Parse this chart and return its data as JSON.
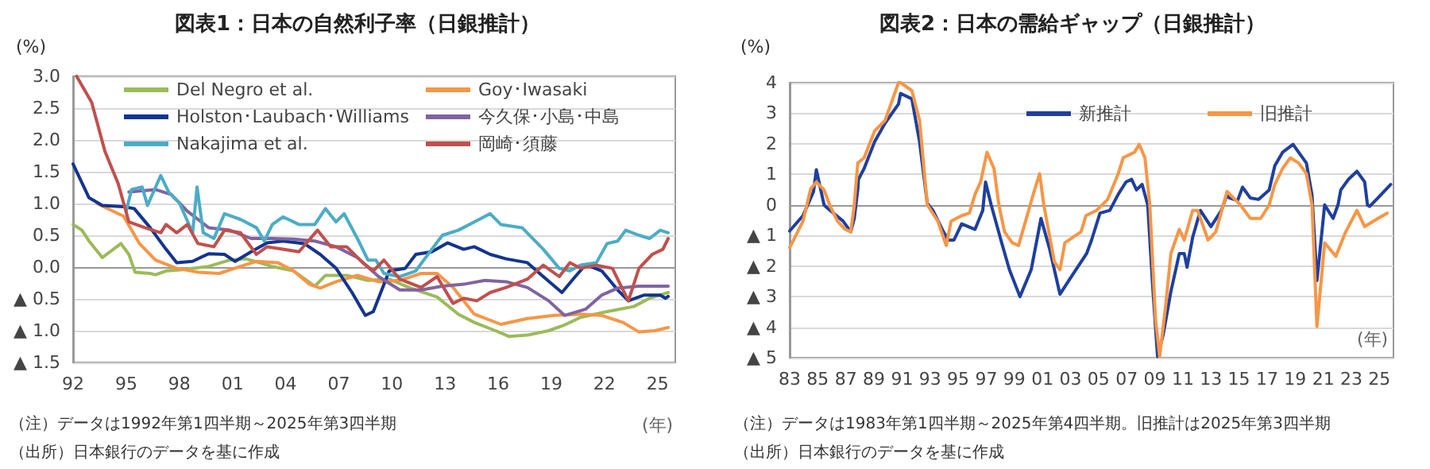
{
  "chart_data": [
    {
      "type": "line",
      "title": "図表1：日本の自然利子率（日銀推計）",
      "ylabel": "(%)",
      "xlabel": "(年)",
      "marker": "none",
      "grid": "y",
      "legend": "top",
      "xlim": [
        1992,
        2026
      ],
      "xticks": [
        {
          "value": 1992,
          "label": "92"
        },
        {
          "value": 1995,
          "label": "95"
        },
        {
          "value": 1998,
          "label": "98"
        },
        {
          "value": 2001,
          "label": "01"
        },
        {
          "value": 2004,
          "label": "04"
        },
        {
          "value": 2007,
          "label": "07"
        },
        {
          "value": 2010,
          "label": "10"
        },
        {
          "value": 2013,
          "label": "13"
        },
        {
          "value": 2016,
          "label": "16"
        },
        {
          "value": 2019,
          "label": "19"
        },
        {
          "value": 2022,
          "label": "22"
        },
        {
          "value": 2025,
          "label": "25"
        }
      ],
      "ylim": [
        -1.5,
        3
      ],
      "yticks": [
        {
          "value": -1.5,
          "label": "▲ 1.5"
        },
        {
          "value": -1,
          "label": "▲ 1.0"
        },
        {
          "value": -0.5,
          "label": "▲ 0.5"
        },
        {
          "value": 0,
          "label": "0.0"
        },
        {
          "value": 0.5,
          "label": "0.5"
        },
        {
          "value": 1,
          "label": "1.0"
        },
        {
          "value": 1.5,
          "label": "1.5"
        },
        {
          "value": 2,
          "label": "2.0"
        },
        {
          "value": 2.5,
          "label": "2.5"
        },
        {
          "value": 3,
          "label": "3.0"
        }
      ],
      "annotations": [
        "（注）データは1992年第1四半期～2025年第3四半期",
        "（出所）日本銀行のデータを基に作成"
      ],
      "series": [
        {
          "name": "Del Negro et al.",
          "color": "#9bbb59",
          "x": [
            1992,
            1992.5,
            1992.9,
            1993.65,
            1994.7,
            1995.15,
            1995.5,
            1996.35,
            1996.65,
            1997.25,
            1998.15,
            1999.65,
            2000.85,
            2001.75,
            2003.25,
            2004.45,
            2005.65,
            2006.25,
            2007.45,
            2008.65,
            2009.85,
            2011.05,
            2012.55,
            2013.75,
            2014.65,
            2015.85,
            2016.6,
            2017.65,
            2018.85,
            2019.75,
            2020.65,
            2022.15,
            2023.65,
            2024.55,
            2025.6
          ],
          "values": [
            0.67,
            0.58,
            0.41,
            0.15,
            0.37,
            0.2,
            -0.08,
            -0.1,
            -0.12,
            -0.06,
            -0.04,
            0.01,
            0.11,
            0.13,
            0.01,
            -0.06,
            -0.3,
            -0.13,
            -0.13,
            -0.21,
            -0.19,
            -0.33,
            -0.47,
            -0.74,
            -0.87,
            -1.0,
            -1.09,
            -1.07,
            -1.0,
            -0.91,
            -0.79,
            -0.7,
            -0.62,
            -0.49,
            -0.4
          ]
        },
        {
          "name": "Goy･Iwasaki",
          "color": "#f79646",
          "x": [
            1993.35,
            1994.85,
            1995.75,
            1996.65,
            1997.85,
            1999.05,
            2000.25,
            2001.45,
            2002.35,
            2003.55,
            2004.45,
            2005.35,
            2005.95,
            2006.85,
            2008.05,
            2009.25,
            2010.45,
            2011.65,
            2012.55,
            2013.45,
            2014.65,
            2016.15,
            2017.65,
            2019.15,
            2020.65,
            2021.85,
            2023.05,
            2023.95,
            2024.85,
            2025.6
          ],
          "values": [
            1.0,
            0.8,
            0.37,
            0.11,
            -0.02,
            -0.08,
            -0.1,
            0.01,
            0.09,
            0.07,
            -0.06,
            -0.27,
            -0.33,
            -0.23,
            -0.13,
            -0.23,
            -0.21,
            -0.1,
            -0.1,
            -0.32,
            -0.74,
            -0.9,
            -0.81,
            -0.76,
            -0.74,
            -0.76,
            -0.87,
            -1.02,
            -1.0,
            -0.95
          ]
        },
        {
          "name": "Holston･Laubach･Williams",
          "color": "#13348f",
          "x": [
            1992,
            1992.9,
            1993.65,
            1994.85,
            1995.45,
            1996.35,
            1997.25,
            1997.85,
            1998.75,
            1999.65,
            2000.55,
            2001.15,
            2002.05,
            2002.95,
            2003.85,
            2005.05,
            2005.95,
            2006.85,
            2007.75,
            2008.5,
            2008.95,
            2009.85,
            2010.75,
            2011.35,
            2012.25,
            2013.15,
            2014.05,
            2014.65,
            2015.55,
            2016.45,
            2017.65,
            2018.55,
            2019.6,
            2020.35,
            2020.95,
            2021.85,
            2022.75,
            2023.35,
            2024.25,
            2025.15,
            2025.45,
            2025.6
          ],
          "values": [
            1.62,
            1.09,
            0.97,
            0.95,
            0.92,
            0.62,
            0.28,
            0.07,
            0.09,
            0.21,
            0.2,
            0.09,
            0.24,
            0.38,
            0.41,
            0.37,
            0.2,
            -0.02,
            -0.4,
            -0.76,
            -0.7,
            -0.06,
            -0.02,
            0.2,
            0.24,
            0.38,
            0.28,
            0.32,
            0.2,
            0.13,
            0.07,
            -0.15,
            -0.4,
            -0.15,
            0.04,
            -0.06,
            -0.36,
            -0.53,
            -0.44,
            -0.44,
            -0.49,
            -0.46
          ]
        },
        {
          "name": "今久保･小島･中島",
          "color": "#8064a2",
          "x": [
            1995.15,
            1996.65,
            1997.55,
            1998.45,
            1999.65,
            2000.85,
            2002.05,
            2003.25,
            2004.45,
            2005.65,
            2006.85,
            2008.05,
            2009.25,
            2010.45,
            2011.65,
            2012.85,
            2014.05,
            2015.25,
            2016.45,
            2017.65,
            2018.85,
            2019.75,
            2020.95,
            2021.85,
            2022.75,
            2023.95,
            2025.6
          ],
          "values": [
            1.18,
            1.22,
            1.14,
            0.88,
            0.62,
            0.58,
            0.45,
            0.45,
            0.44,
            0.41,
            0.32,
            0.15,
            -0.15,
            -0.36,
            -0.36,
            -0.3,
            -0.27,
            -0.21,
            -0.23,
            -0.32,
            -0.53,
            -0.76,
            -0.66,
            -0.44,
            -0.33,
            -0.3,
            -0.3
          ]
        },
        {
          "name": "Nakajima et al.",
          "color": "#4bacc6",
          "x": [
            1995,
            1995.3,
            1995.9,
            1996.2,
            1996.95,
            1997.4,
            1998,
            1998.75,
            1999,
            1999.35,
            1999.95,
            2000.55,
            2001.45,
            2002.35,
            2002.8,
            2003.25,
            2003.85,
            2004.75,
            2005.65,
            2006.25,
            2006.85,
            2007.3,
            2008.05,
            2008.65,
            2009.1,
            2009.55,
            2010.45,
            2011.35,
            2012.25,
            2012.85,
            2013.75,
            2014.65,
            2015.55,
            2016.15,
            2017.35,
            2018.55,
            2019.45,
            2020.05,
            2020.65,
            2021.55,
            2022.15,
            2022.75,
            2023.2,
            2023.95,
            2024.55,
            2025.15,
            2025.6
          ],
          "values": [
            0.88,
            1.22,
            1.26,
            0.97,
            1.44,
            1.18,
            1.01,
            0.54,
            1.26,
            0.54,
            0.45,
            0.84,
            0.75,
            0.62,
            0.41,
            0.67,
            0.79,
            0.67,
            0.67,
            0.92,
            0.71,
            0.84,
            0.45,
            0.11,
            0.11,
            -0.1,
            -0.15,
            -0.06,
            0.28,
            0.5,
            0.58,
            0.71,
            0.84,
            0.67,
            0.62,
            0.28,
            -0.02,
            -0.06,
            0.03,
            0.07,
            0.37,
            0.41,
            0.58,
            0.5,
            0.45,
            0.58,
            0.54
          ]
        },
        {
          "name": "岡崎･須藤",
          "color": "#c0504d",
          "x": [
            1992.2,
            1993.05,
            1993.8,
            1994.55,
            1995.15,
            1996.05,
            1996.95,
            1997.25,
            1997.85,
            1998.45,
            1999.05,
            1999.95,
            2000.55,
            2001.45,
            2002.35,
            2002.95,
            2003.85,
            2004.75,
            2005.8,
            2006.55,
            2007.45,
            2008.35,
            2008.95,
            2009.55,
            2010.45,
            2011.65,
            2012.55,
            2013.45,
            2014.05,
            2014.8,
            2015.55,
            2016.45,
            2017.65,
            2018.55,
            2019.45,
            2020.05,
            2020.65,
            2021.55,
            2022.45,
            2023.35,
            2023.95,
            2024.7,
            2025.3,
            2025.6
          ],
          "values": [
            3.0,
            2.59,
            1.82,
            1.31,
            0.71,
            0.62,
            0.54,
            0.67,
            0.54,
            0.67,
            0.37,
            0.32,
            0.58,
            0.54,
            0.2,
            0.32,
            0.28,
            0.24,
            0.58,
            0.32,
            0.32,
            0.07,
            -0.06,
            0.11,
            -0.19,
            -0.32,
            -0.15,
            -0.57,
            -0.49,
            -0.53,
            -0.4,
            -0.32,
            -0.19,
            0.03,
            -0.15,
            0.07,
            -0.02,
            0.03,
            -0.02,
            -0.53,
            -0.02,
            0.2,
            0.28,
            0.45
          ]
        }
      ]
    },
    {
      "type": "line",
      "title": "図表2：日本の需給ギャップ（日銀推計）",
      "ylabel": "(%)",
      "xlabel": "(年)",
      "marker": "none",
      "grid": "y",
      "legend": "top right",
      "xlim": [
        1983,
        2026
      ],
      "xticks": [
        {
          "value": 1983,
          "label": "83"
        },
        {
          "value": 1985,
          "label": "85"
        },
        {
          "value": 1987,
          "label": "87"
        },
        {
          "value": 1989,
          "label": "89"
        },
        {
          "value": 1991,
          "label": "91"
        },
        {
          "value": 1993,
          "label": "93"
        },
        {
          "value": 1995,
          "label": "95"
        },
        {
          "value": 1997,
          "label": "97"
        },
        {
          "value": 1999,
          "label": "99"
        },
        {
          "value": 2001,
          "label": "01"
        },
        {
          "value": 2003,
          "label": "03"
        },
        {
          "value": 2005,
          "label": "05"
        },
        {
          "value": 2007,
          "label": "07"
        },
        {
          "value": 2009,
          "label": "09"
        },
        {
          "value": 2011,
          "label": "11"
        },
        {
          "value": 2013,
          "label": "13"
        },
        {
          "value": 2015,
          "label": "15"
        },
        {
          "value": 2017,
          "label": "17"
        },
        {
          "value": 2019,
          "label": "19"
        },
        {
          "value": 2021,
          "label": "21"
        },
        {
          "value": 2023,
          "label": "23"
        },
        {
          "value": 2025,
          "label": "25"
        }
      ],
      "ylim": [
        -5,
        4
      ],
      "yticks": [
        {
          "value": -5,
          "label": "▲ 5"
        },
        {
          "value": -4,
          "label": "▲ 4"
        },
        {
          "value": -3,
          "label": "▲ 3"
        },
        {
          "value": -2,
          "label": "▲ 2"
        },
        {
          "value": -1,
          "label": "▲ 1"
        },
        0,
        1,
        2,
        3,
        4
      ],
      "annotations": [
        "（注）データは1983年第1四半期～2025年第4四半期。旧推計は2025年第3四半期",
        "（出所）日本銀行のデータを基に作成"
      ],
      "series": [
        {
          "name": "新推計",
          "color": "#1f3f9f",
          "x": [
            1983,
            1983.95,
            1984.7,
            1984.9,
            1985.45,
            1985.65,
            1986.8,
            1987.35,
            1987.6,
            1987.85,
            1987.9,
            1988.3,
            1989.05,
            1989.8,
            1990.75,
            1990.9,
            1991.7,
            1992.25,
            1992.8,
            1993.2,
            1993.95,
            1994.3,
            1994.7,
            1995.25,
            1996.2,
            1996.75,
            1996.95,
            1997.35,
            1998.1,
            1998.65,
            1999.4,
            2000.2,
            2000.9,
            2001.5,
            2002.25,
            2003,
            2004.15,
            2004.5,
            2005.1,
            2005.8,
            2006.4,
            2006.95,
            2007.35,
            2007.7,
            2008.1,
            2008.5,
            2008.85,
            2009.2,
            2009.6,
            2010.15,
            2010.75,
            2011.1,
            2011.3,
            2011.7,
            2012.25,
            2013,
            2013.75,
            2014.15,
            2014.3,
            2014.9,
            2015.25,
            2015.8,
            2016.4,
            2017.15,
            2017.55,
            2018.1,
            2018.85,
            2019.25,
            2019.8,
            2020.2,
            2020.55,
            2021.1,
            2021.7,
            2022.05,
            2022.25,
            2022.8,
            2023.4,
            2023.95,
            2024.15,
            2024.3,
            2024.9,
            2025.8
          ],
          "values": [
            -0.85,
            -0.35,
            0.44,
            1.15,
            0,
            -0.09,
            -0.53,
            -0.88,
            -0.44,
            0.5,
            0.84,
            1.19,
            2.07,
            2.68,
            3.3,
            3.65,
            3.47,
            2.07,
            0.05,
            -0.18,
            -0.88,
            -1.15,
            -1.15,
            -0.62,
            -0.8,
            -0.18,
            0.75,
            0,
            -1.24,
            -2.12,
            -3.0,
            -2.12,
            -0.44,
            -1.42,
            -2.92,
            -2.39,
            -1.59,
            -1.15,
            -0.27,
            -0.18,
            0.35,
            0.75,
            0.84,
            0.49,
            0.67,
            0,
            -2.65,
            -4.96,
            -4.25,
            -2.83,
            -1.59,
            -1.59,
            -2.04,
            -1.06,
            -0.18,
            -0.71,
            -0.18,
            0.35,
            0.23,
            0.14,
            0.58,
            0.23,
            0.18,
            0.49,
            1.28,
            1.72,
            1.98,
            1.72,
            1.37,
            0.32,
            -2.48,
            0,
            -0.44,
            0,
            0.49,
            0.84,
            1.1,
            0.75,
            0,
            -0.05,
            0.23,
            0.67
          ]
        },
        {
          "name": "旧推計",
          "color": "#f79646",
          "x": [
            1983,
            1983.95,
            1984.5,
            1984.9,
            1985.45,
            1985.85,
            1986.4,
            1986.95,
            1987.35,
            1987.6,
            1987.85,
            1988.3,
            1989.05,
            1989.8,
            1990.75,
            1990.9,
            1991.7,
            1992.25,
            1992.8,
            1993.55,
            1994.15,
            1994.5,
            1995.25,
            1995.8,
            1996.2,
            1996.6,
            1997.05,
            1997.55,
            1997.9,
            1998.3,
            1998.85,
            1999.3,
            1999.8,
            2000.35,
            2000.8,
            2001.1,
            2001.85,
            2002.25,
            2002.6,
            2003.75,
            2004.1,
            2004.85,
            2005.65,
            2006.4,
            2006.75,
            2007.55,
            2007.9,
            2008.3,
            2008.65,
            2009.05,
            2009.35,
            2009.8,
            2010.15,
            2010.75,
            2011.1,
            2011.7,
            2012.05,
            2012.8,
            2013.35,
            2014.15,
            2015.1,
            2015.8,
            2016.55,
            2017.15,
            2017.55,
            2018.1,
            2018.65,
            2019.25,
            2019.8,
            2020.2,
            2020.55,
            2021.1,
            2021.9,
            2022.6,
            2023.4,
            2023.95,
            2024.9,
            2025.55
          ],
          "values": [
            -1.4,
            -0.53,
            0.53,
            0.75,
            0.49,
            0,
            -0.53,
            -0.8,
            -0.88,
            0,
            1.37,
            1.54,
            2.42,
            2.77,
            4.0,
            4.0,
            3.74,
            2.77,
            0,
            -0.53,
            -1.33,
            -0.53,
            -0.35,
            -0.27,
            0.35,
            0.75,
            1.72,
            1.19,
            0,
            -0.88,
            -1.24,
            -1.33,
            -0.53,
            0.35,
            1.02,
            0,
            -1.86,
            -2.12,
            -1.24,
            -0.88,
            -0.35,
            -0.18,
            0.18,
            1.02,
            1.54,
            1.72,
            1.98,
            1.54,
            0,
            -3.72,
            -4.96,
            -3.19,
            -1.59,
            -0.8,
            -1.15,
            -0.18,
            -0.18,
            -1.15,
            -0.88,
            0.44,
            0,
            -0.44,
            -0.44,
            0,
            0.67,
            1.19,
            1.54,
            1.37,
            1.02,
            0,
            -3.98,
            -1.24,
            -1.68,
            -0.88,
            -0.18,
            -0.71,
            -0.44,
            -0.27
          ]
        }
      ]
    }
  ]
}
